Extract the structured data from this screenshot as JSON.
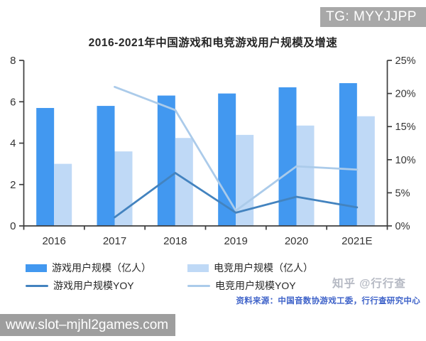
{
  "header": {
    "badge": "TG: MYYJJPP"
  },
  "chart_data": {
    "type": "bar",
    "subtype": "grouped bars with overlay lines (dual axis)",
    "title": "2016-2021年中国游戏和电竞游戏用户规模及增速",
    "categories": [
      "2016",
      "2017",
      "2018",
      "2019",
      "2020",
      "2021E"
    ],
    "bar_series": [
      {
        "name": "游戏用户规模（亿人）",
        "color": "#4298f0",
        "axis": "left",
        "values": [
          5.7,
          5.8,
          6.3,
          6.4,
          6.7,
          6.9
        ]
      },
      {
        "name": "电竞用户规模（亿人）",
        "color": "#bfd9f6",
        "axis": "left",
        "values": [
          3.0,
          3.6,
          4.25,
          4.4,
          4.85,
          5.3
        ]
      }
    ],
    "line_series": [
      {
        "name": "游戏用户规模YOY",
        "color": "#4383bf",
        "axis": "right",
        "values": [
          null,
          1.3,
          8.0,
          2.0,
          4.4,
          2.8
        ]
      },
      {
        "name": "电竞用户规模YOY",
        "color": "#abcbea",
        "axis": "right",
        "values": [
          null,
          21.0,
          17.5,
          2.3,
          9.0,
          8.5
        ]
      }
    ],
    "left_axis": {
      "min": 0,
      "max": 8,
      "tick_values": [
        0,
        2,
        4,
        6,
        8
      ],
      "tick_labels": [
        "0",
        "2",
        "4",
        "6",
        "8"
      ]
    },
    "right_axis": {
      "min": 0,
      "max": 25,
      "tick_values": [
        0,
        5,
        10,
        15,
        20,
        25
      ],
      "tick_labels": [
        "0%",
        "5%",
        "10%",
        "15%",
        "20%",
        "25%"
      ]
    },
    "grid": false,
    "legend_position": "bottom"
  },
  "footer": {
    "watermark": "知乎 @行行查",
    "source": "资料来源：中国音数协游戏工委，行行查研究中心",
    "url_bar": "www.slot–mjhl2games.com"
  }
}
